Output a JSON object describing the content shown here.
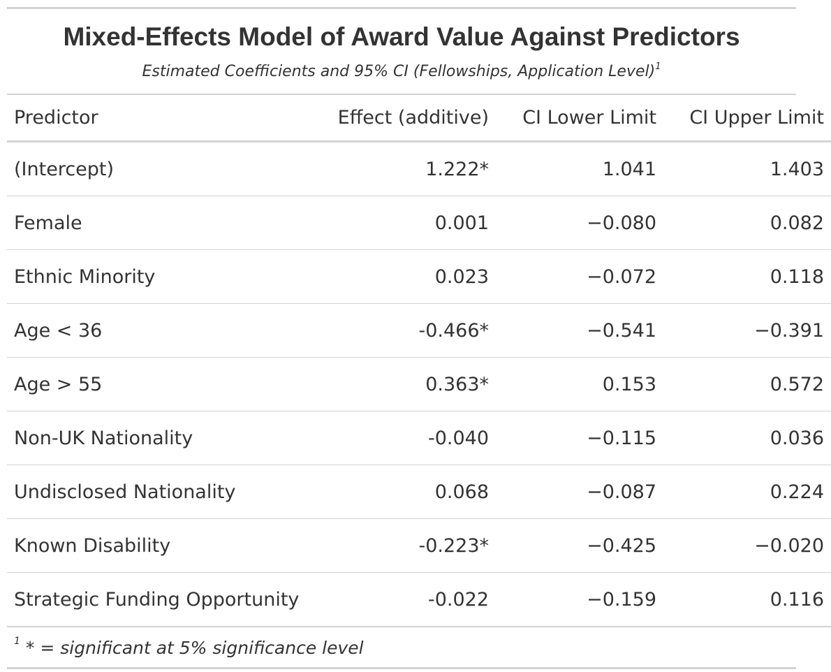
{
  "title": "Mixed-Effects Model of Award Value Against Predictors",
  "subtitle": "Estimated Coefficients and 95% CI (Fellowships, Application Level)",
  "subtitle_footnote_mark": "1",
  "columns": [
    "Predictor",
    "Effect (additive)",
    "CI Lower Limit",
    "CI Upper Limit"
  ],
  "rows": [
    {
      "predictor": "(Intercept)",
      "effect": "1.222*",
      "lower": "1.041",
      "upper": "1.403"
    },
    {
      "predictor": "Female",
      "effect": "0.001",
      "lower": "−0.080",
      "upper": "0.082"
    },
    {
      "predictor": "Ethnic Minority",
      "effect": "0.023",
      "lower": "−0.072",
      "upper": "0.118"
    },
    {
      "predictor": "Age < 36",
      "effect": "-0.466*",
      "lower": "−0.541",
      "upper": "−0.391"
    },
    {
      "predictor": "Age > 55",
      "effect": "0.363*",
      "lower": "0.153",
      "upper": "0.572"
    },
    {
      "predictor": "Non-UK Nationality",
      "effect": "-0.040",
      "lower": "−0.115",
      "upper": "0.036"
    },
    {
      "predictor": "Undisclosed Nationality",
      "effect": "0.068",
      "lower": "−0.087",
      "upper": "0.224"
    },
    {
      "predictor": "Known Disability",
      "effect": "-0.223*",
      "lower": "−0.425",
      "upper": "−0.020"
    },
    {
      "predictor": "Strategic Funding Opportunity",
      "effect": "-0.022",
      "lower": "−0.159",
      "upper": "0.116"
    }
  ],
  "footnote": {
    "mark": "1",
    "text": "* = significant at 5% significance level"
  },
  "colors": {
    "text": "#333333",
    "rule": "#d3d3d3",
    "background": "#ffffff"
  }
}
